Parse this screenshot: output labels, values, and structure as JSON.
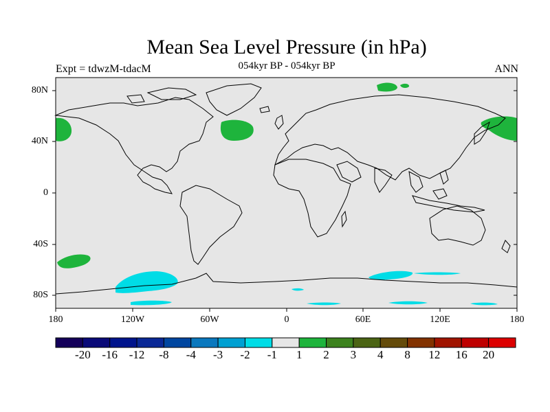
{
  "title": "Mean Sea Level Pressure (in hPa)",
  "subtitle": "054kyr BP - 054kyr BP",
  "left_label": "Expt = tdwzM-tdacM",
  "right_label": "ANN",
  "lat_ticks": [
    "80N",
    "40N",
    "0",
    "40S",
    "80S"
  ],
  "lon_ticks": [
    "180",
    "120W",
    "60W",
    "0",
    "60E",
    "120E",
    "180"
  ],
  "colorbar": {
    "labels": [
      "-20",
      "-16",
      "-12",
      "-8",
      "-4",
      "-3",
      "-2",
      "-1",
      "1",
      "2",
      "3",
      "4",
      "8",
      "12",
      "16",
      "20"
    ],
    "colors": [
      "#14005a",
      "#0a0a78",
      "#00148c",
      "#0a2896",
      "#0046a0",
      "#0a78be",
      "#00a0d2",
      "#00dce6",
      "#e6e6e6",
      "#1eb43c",
      "#3c821e",
      "#4b6414",
      "#644b0a",
      "#823200",
      "#a01400",
      "#be0000",
      "#dc0000"
    ]
  },
  "map": {
    "background": "#e6e6e6",
    "coastline": "#000000",
    "positive_anomaly_color": "#1eb43c",
    "negative_anomaly_color": "#00dce6"
  }
}
